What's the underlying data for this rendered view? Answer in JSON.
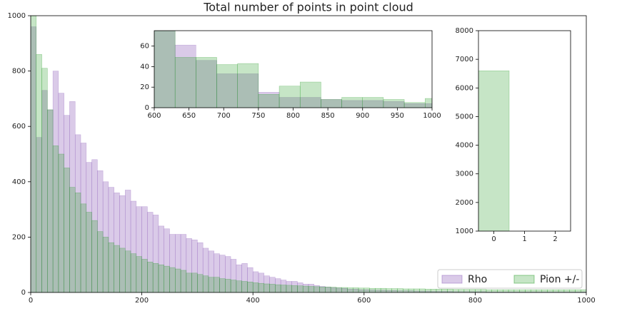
{
  "chart_data": [
    {
      "type": "histogram",
      "title": "Total number of points in point cloud",
      "bins": [
        0,
        10,
        20,
        30,
        40,
        50,
        60,
        70,
        80,
        90,
        100,
        110,
        120,
        130,
        140,
        150,
        160,
        170,
        180,
        190,
        200,
        210,
        220,
        230,
        240,
        250,
        260,
        270,
        280,
        290,
        300,
        310,
        320,
        330,
        340,
        350,
        360,
        370,
        380,
        390,
        400,
        410,
        420,
        430,
        440,
        450,
        460,
        470,
        480,
        490,
        500,
        510,
        520,
        530,
        540,
        550,
        560,
        570,
        580,
        590,
        600,
        610,
        620,
        630,
        640,
        650,
        660,
        670,
        680,
        690,
        700,
        710,
        720,
        730,
        740,
        750,
        760,
        770,
        780,
        790,
        800,
        810,
        820,
        830,
        840,
        850,
        860,
        870,
        880,
        890,
        900,
        910,
        920,
        930,
        940,
        950,
        960,
        970,
        980,
        990,
        1000
      ],
      "series": [
        {
          "name": "Rho",
          "color": "#9467bd",
          "values": [
            960,
            560,
            730,
            660,
            800,
            720,
            640,
            690,
            570,
            540,
            470,
            480,
            440,
            400,
            380,
            360,
            350,
            370,
            330,
            310,
            310,
            290,
            280,
            240,
            230,
            210,
            210,
            210,
            195,
            190,
            180,
            160,
            150,
            140,
            135,
            130,
            120,
            100,
            105,
            90,
            75,
            70,
            60,
            55,
            50,
            45,
            40,
            40,
            35,
            30,
            30,
            25,
            22,
            20,
            18,
            16,
            15,
            12,
            12,
            10,
            10,
            9,
            8,
            8,
            7,
            7,
            6,
            6,
            6,
            5,
            5,
            5,
            4,
            4,
            4,
            4,
            3,
            3,
            3,
            3,
            3,
            3,
            2,
            2,
            2,
            2,
            2,
            2,
            2,
            2,
            2,
            2,
            2,
            2,
            2,
            2,
            2,
            2,
            2,
            2
          ]
        },
        {
          "name": "Pion +/-",
          "color": "#2ca02c",
          "values": [
            1000,
            860,
            810,
            660,
            530,
            500,
            450,
            380,
            360,
            320,
            290,
            260,
            220,
            200,
            180,
            170,
            160,
            150,
            140,
            130,
            120,
            110,
            105,
            100,
            95,
            90,
            85,
            80,
            70,
            70,
            65,
            60,
            55,
            55,
            50,
            48,
            45,
            42,
            40,
            38,
            35,
            33,
            31,
            30,
            28,
            27,
            26,
            25,
            24,
            23,
            22,
            21,
            20,
            20,
            19,
            18,
            18,
            17,
            17,
            16,
            16,
            15,
            15,
            15,
            14,
            14,
            14,
            13,
            13,
            13,
            13,
            12,
            12,
            12,
            12,
            12,
            11,
            11,
            11,
            11,
            11,
            11,
            10,
            10,
            10,
            10,
            10,
            10,
            10,
            10,
            10,
            10,
            10,
            10,
            10,
            10,
            10,
            10,
            10,
            10
          ]
        }
      ],
      "xlim": [
        0,
        1000
      ],
      "xticks": [
        0,
        200,
        400,
        600,
        800,
        1000
      ],
      "ylim": [
        0,
        1000
      ],
      "yticks": [
        0,
        200,
        400,
        600,
        800,
        1000
      ],
      "legend": "lower right"
    },
    {
      "type": "histogram",
      "bins": [
        600,
        630,
        660,
        690,
        720,
        750,
        780,
        810,
        840,
        870,
        900,
        930,
        960,
        990,
        1000
      ],
      "series": [
        {
          "name": "Rho",
          "color": "#9467bd",
          "values": [
            75,
            61,
            46,
            33,
            33,
            15,
            10,
            10,
            8,
            7,
            7,
            6,
            4,
            4
          ]
        },
        {
          "name": "Pion +/-",
          "color": "#2ca02c",
          "values": [
            75,
            49,
            49,
            42,
            43,
            13,
            21,
            25,
            8,
            10,
            10,
            8,
            5,
            9
          ]
        }
      ],
      "xlim": [
        600,
        1000
      ],
      "xticks": [
        600,
        650,
        700,
        750,
        800,
        850,
        900,
        950,
        1000
      ],
      "ylim": [
        0,
        75
      ],
      "yticks": [
        0,
        20,
        40,
        60
      ]
    },
    {
      "type": "bar",
      "x": [
        0
      ],
      "series": [
        {
          "name": "Pion +/-",
          "color": "#2ca02c",
          "values": [
            6600
          ]
        }
      ],
      "xlim": [
        -0.5,
        2.5
      ],
      "xticks": [
        0,
        1,
        2
      ],
      "ylim": [
        1000,
        8000
      ],
      "yticks": [
        1000,
        2000,
        3000,
        4000,
        5000,
        6000,
        7000,
        8000
      ]
    }
  ]
}
